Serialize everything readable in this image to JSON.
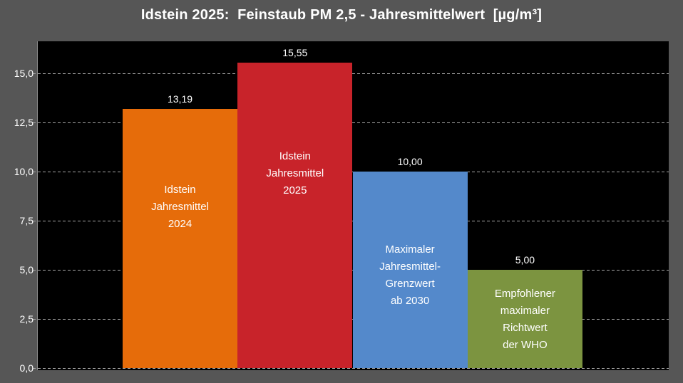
{
  "chart_data": {
    "type": "bar",
    "title": "Idstein 2025:  Feinstaub PM 2,5 - Jahresmittelwert  [µg/m³]",
    "categories": [
      "Idstein\nJahresmittel\n2024",
      "Idstein\nJahresmittel\n2025",
      "Maximaler\nJahresmittel-\nGrenzwert\nab 2030",
      "Empfohlener\nmaximaler\nRichtwert\nder WHO"
    ],
    "values": [
      13.19,
      15.55,
      10.0,
      5.0
    ],
    "value_labels": [
      "13,19",
      "15,55",
      "10,00",
      "5,00"
    ],
    "bar_colors": [
      "#E66C0A",
      "#C8232A",
      "#5489CB",
      "#7C9440"
    ],
    "xlabel": "",
    "ylabel": "",
    "ylim": [
      0,
      16.6
    ],
    "ytick_values": [
      0,
      2.5,
      5,
      7.5,
      10,
      12.5,
      15
    ],
    "ytick_labels": [
      "0,0",
      "2,5",
      "5,0",
      "7,5",
      "10,0",
      "12,5",
      "15,0"
    ],
    "grid": "horizontal-dashed",
    "legend_position": "none"
  },
  "colors": {
    "background": "#565656",
    "plot_background": "#000000",
    "text": "#FFFFFF",
    "gridline": "#A8A8A8",
    "axis_line": "#8C8C8C"
  }
}
